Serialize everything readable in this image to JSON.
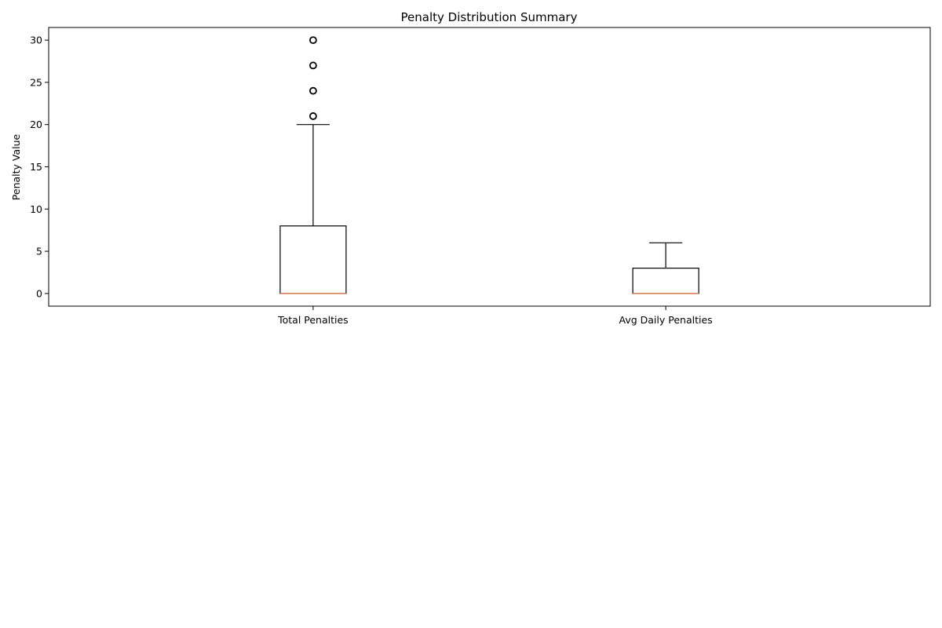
{
  "chart_data": {
    "type": "box",
    "title": "Penalty Distribution Summary",
    "xlabel": "",
    "ylabel": "Penalty Value",
    "ylim": [
      -1.5,
      31.5
    ],
    "yticks": [
      0,
      5,
      10,
      15,
      20,
      25,
      30
    ],
    "grid": false,
    "categories": [
      "Total Penalties",
      "Avg Daily Penalties"
    ],
    "boxes": [
      {
        "label": "Total Penalties",
        "whisker_low": 0,
        "q1": 0,
        "median": 0,
        "q3": 8,
        "whisker_high": 20,
        "outliers": [
          21,
          24,
          27,
          30
        ]
      },
      {
        "label": "Avg Daily Penalties",
        "whisker_low": 0,
        "q1": 0,
        "median": 0,
        "q3": 3,
        "whisker_high": 6,
        "outliers": []
      }
    ],
    "colors": {
      "box": "#000000",
      "median": "#dd8452",
      "outlier": "#000000"
    }
  }
}
